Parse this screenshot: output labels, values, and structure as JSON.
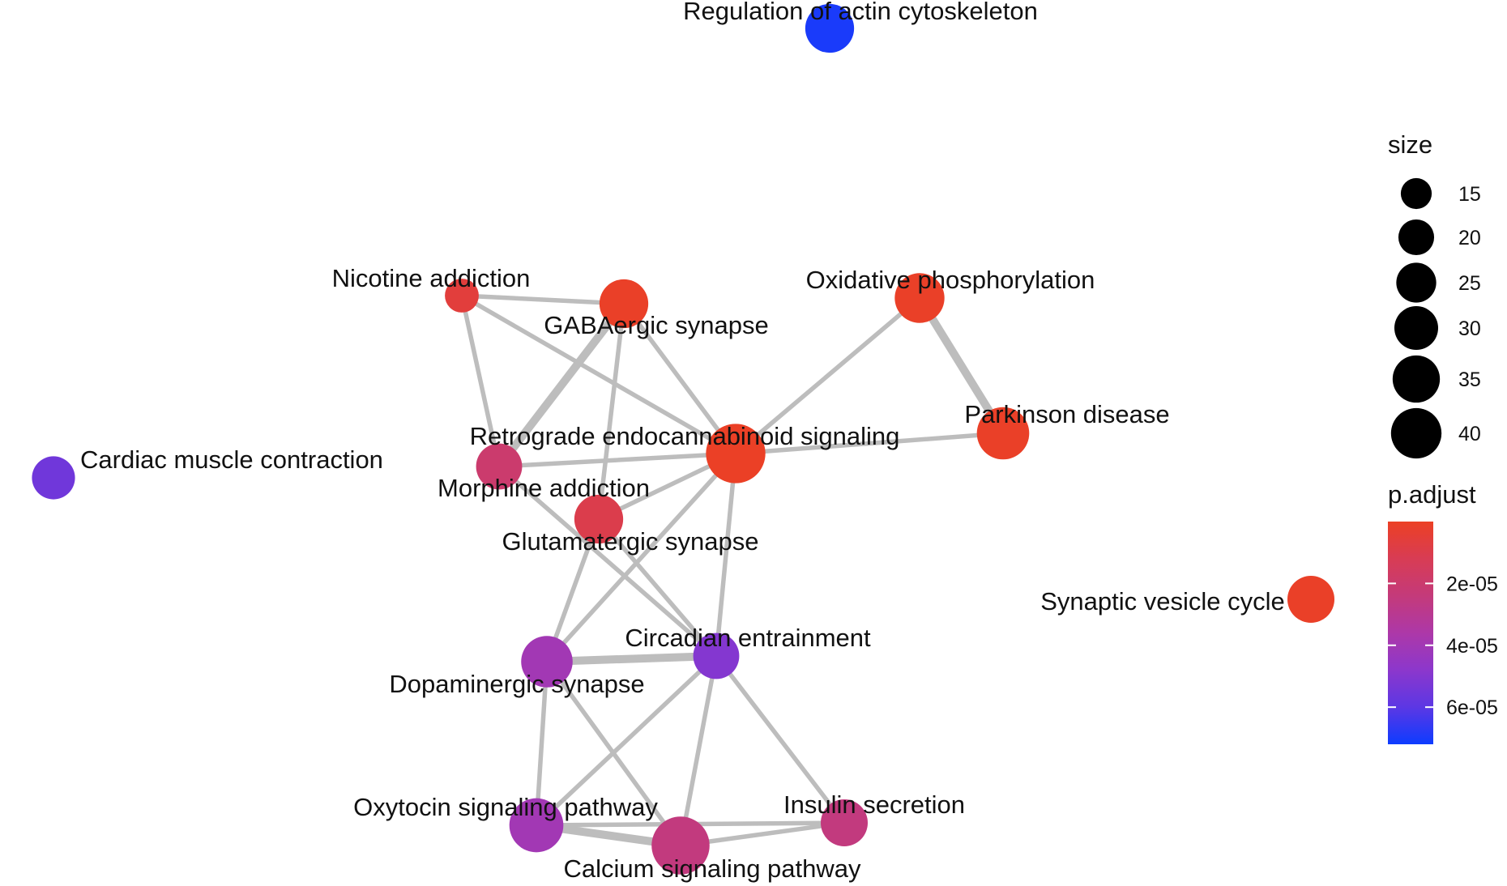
{
  "network": {
    "nodes": [
      {
        "id": "regulation-of-actin-cytoskeleton",
        "label": "Regulation of actin cytoskeleton",
        "size": 27,
        "p_adjust": 7e-05
      },
      {
        "id": "nicotine-addiction",
        "label": "Nicotine addiction",
        "size": 13,
        "p_adjust": 6e-06
      },
      {
        "id": "gabaergic-synapse",
        "label": "GABAergic synapse",
        "size": 27,
        "p_adjust": 1e-06
      },
      {
        "id": "oxidative-phosphorylation",
        "label": "Oxidative phosphorylation",
        "size": 28,
        "p_adjust": 1e-06
      },
      {
        "id": "parkinson-disease",
        "label": "Parkinson disease",
        "size": 31,
        "p_adjust": 1e-06
      },
      {
        "id": "retrograde-endocannabinoid-signaling",
        "label": "Retrograde endocannabinoid signaling",
        "size": 40,
        "p_adjust": 5e-07
      },
      {
        "id": "cardiac-muscle-contraction",
        "label": "Cardiac muscle contraction",
        "size": 21,
        "p_adjust": 5.5e-05
      },
      {
        "id": "morphine-addiction",
        "label": "Morphine addiction",
        "size": 24,
        "p_adjust": 2e-05
      },
      {
        "id": "glutamatergic-synapse",
        "label": "Glutamatergic synapse",
        "size": 27,
        "p_adjust": 1e-05
      },
      {
        "id": "synaptic-vesicle-cycle",
        "label": "Synaptic vesicle cycle",
        "size": 25,
        "p_adjust": 1e-06
      },
      {
        "id": "circadian-entrainment",
        "label": "Circadian entrainment",
        "size": 24,
        "p_adjust": 5e-05
      },
      {
        "id": "dopaminergic-synapse",
        "label": "Dopaminergic synapse",
        "size": 30,
        "p_adjust": 4e-05
      },
      {
        "id": "oxytocin-signaling-pathway",
        "label": "Oxytocin signaling pathway",
        "size": 33,
        "p_adjust": 4e-05
      },
      {
        "id": "insulin-secretion",
        "label": "Insulin secretion",
        "size": 25,
        "p_adjust": 2.5e-05
      },
      {
        "id": "calcium-signaling-pathway",
        "label": "Calcium signaling pathway",
        "size": 38,
        "p_adjust": 2.5e-05
      }
    ],
    "edges": [
      {
        "from": "nicotine-addiction",
        "to": "gabaergic-synapse",
        "weight": 1
      },
      {
        "from": "nicotine-addiction",
        "to": "morphine-addiction",
        "weight": 1
      },
      {
        "from": "nicotine-addiction",
        "to": "retrograde-endocannabinoid-signaling",
        "weight": 1
      },
      {
        "from": "gabaergic-synapse",
        "to": "morphine-addiction",
        "weight": 2
      },
      {
        "from": "gabaergic-synapse",
        "to": "retrograde-endocannabinoid-signaling",
        "weight": 1
      },
      {
        "from": "gabaergic-synapse",
        "to": "glutamatergic-synapse",
        "weight": 1
      },
      {
        "from": "oxidative-phosphorylation",
        "to": "parkinson-disease",
        "weight": 2
      },
      {
        "from": "oxidative-phosphorylation",
        "to": "retrograde-endocannabinoid-signaling",
        "weight": 1
      },
      {
        "from": "parkinson-disease",
        "to": "retrograde-endocannabinoid-signaling",
        "weight": 1
      },
      {
        "from": "morphine-addiction",
        "to": "retrograde-endocannabinoid-signaling",
        "weight": 1
      },
      {
        "from": "morphine-addiction",
        "to": "circadian-entrainment",
        "weight": 1
      },
      {
        "from": "glutamatergic-synapse",
        "to": "retrograde-endocannabinoid-signaling",
        "weight": 1
      },
      {
        "from": "glutamatergic-synapse",
        "to": "dopaminergic-synapse",
        "weight": 1
      },
      {
        "from": "glutamatergic-synapse",
        "to": "circadian-entrainment",
        "weight": 1
      },
      {
        "from": "retrograde-endocannabinoid-signaling",
        "to": "dopaminergic-synapse",
        "weight": 1
      },
      {
        "from": "retrograde-endocannabinoid-signaling",
        "to": "circadian-entrainment",
        "weight": 1
      },
      {
        "from": "dopaminergic-synapse",
        "to": "circadian-entrainment",
        "weight": 2
      },
      {
        "from": "dopaminergic-synapse",
        "to": "oxytocin-signaling-pathway",
        "weight": 1
      },
      {
        "from": "dopaminergic-synapse",
        "to": "calcium-signaling-pathway",
        "weight": 1
      },
      {
        "from": "circadian-entrainment",
        "to": "oxytocin-signaling-pathway",
        "weight": 1
      },
      {
        "from": "circadian-entrainment",
        "to": "calcium-signaling-pathway",
        "weight": 1
      },
      {
        "from": "circadian-entrainment",
        "to": "insulin-secretion",
        "weight": 1
      },
      {
        "from": "oxytocin-signaling-pathway",
        "to": "calcium-signaling-pathway",
        "weight": 2
      },
      {
        "from": "oxytocin-signaling-pathway",
        "to": "insulin-secretion",
        "weight": 1
      },
      {
        "from": "calcium-signaling-pathway",
        "to": "insulin-secretion",
        "weight": 1
      }
    ]
  },
  "legend": {
    "size": {
      "title": "size",
      "entries": [
        {
          "label": "15",
          "value": 15
        },
        {
          "label": "20",
          "value": 20
        },
        {
          "label": "25",
          "value": 25
        },
        {
          "label": "30",
          "value": 30
        },
        {
          "label": "35",
          "value": 35
        },
        {
          "label": "40",
          "value": 40
        }
      ]
    },
    "p_adjust": {
      "title": "p.adjust",
      "range": [
        0,
        7.2e-05
      ],
      "ticks": [
        {
          "label": "2e-05",
          "value": 2e-05
        },
        {
          "label": "4e-05",
          "value": 4e-05
        },
        {
          "label": "6e-05",
          "value": 6e-05
        }
      ],
      "colors": [
        "#ec4024",
        "#d83c54",
        "#c43a7a",
        "#ad38a8",
        "#8c37cc",
        "#5c37e4",
        "#0d3cff"
      ]
    }
  },
  "colors": {
    "edge": "#bdbdbd"
  }
}
